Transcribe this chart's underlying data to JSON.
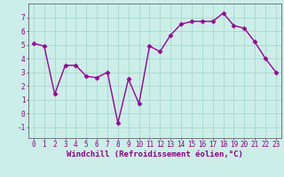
{
  "x": [
    0,
    1,
    2,
    3,
    4,
    5,
    6,
    7,
    8,
    9,
    10,
    11,
    12,
    13,
    14,
    15,
    16,
    17,
    18,
    19,
    20,
    21,
    22,
    23
  ],
  "y": [
    5.1,
    4.9,
    1.4,
    3.5,
    3.5,
    2.7,
    2.6,
    3.0,
    -0.7,
    2.5,
    0.7,
    4.9,
    4.5,
    5.7,
    6.5,
    6.7,
    6.7,
    6.7,
    7.3,
    6.4,
    6.2,
    5.2,
    4.0,
    3.0
  ],
  "line_color": "#990099",
  "marker": "D",
  "marker_size": 2.5,
  "bg_color": "#cceee8",
  "grid_color": "#aaddcc",
  "xlabel": "Windchill (Refroidissement éolien,°C)",
  "ylim": [
    -1.8,
    8.0
  ],
  "xlim": [
    -0.5,
    23.5
  ],
  "yticks": [
    -1,
    0,
    1,
    2,
    3,
    4,
    5,
    6,
    7
  ],
  "xticks": [
    0,
    1,
    2,
    3,
    4,
    5,
    6,
    7,
    8,
    9,
    10,
    11,
    12,
    13,
    14,
    15,
    16,
    17,
    18,
    19,
    20,
    21,
    22,
    23
  ],
  "tick_label_size": 5.5,
  "xlabel_size": 6.5,
  "axis_color": "#880088",
  "spine_color": "#666666",
  "linewidth": 1.0
}
